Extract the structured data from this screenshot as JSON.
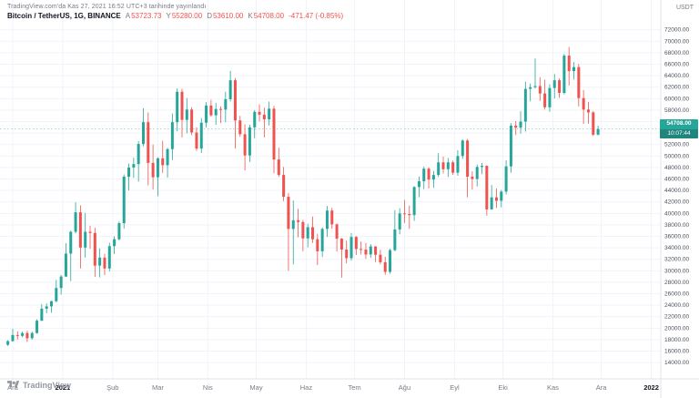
{
  "attribution": "TradingView.com'da Kas 27, 2021 16:52 UTC+3 tarihinde yayınlandı",
  "header": {
    "symbol": "Bitcoin / TetherUS, 1G, BINANCE",
    "ohlc": [
      {
        "label": "A",
        "value": "53723.73"
      },
      {
        "label": "Y",
        "value": "55280.00"
      },
      {
        "label": "D",
        "value": "53610.00"
      },
      {
        "label": "K",
        "value": "54708.00"
      }
    ],
    "change": "-471.47 (-0.85%)",
    "down_color": "#ef5350"
  },
  "price_scale_unit": "USDT",
  "last_price": {
    "price": 54708,
    "value": "54708.00",
    "countdown": "10:07:44",
    "color": "#26a69a"
  },
  "price_axis": {
    "tick_min": 14000,
    "tick_max": 72000,
    "tick_step": 2000
  },
  "time_axis": [
    {
      "label": "Ara",
      "day": 3
    },
    {
      "label": "2021",
      "day": 34,
      "strong": true
    },
    {
      "label": "Şub",
      "day": 65
    },
    {
      "label": "Mar",
      "day": 93
    },
    {
      "label": "Nis",
      "day": 124
    },
    {
      "label": "May",
      "day": 154
    },
    {
      "label": "Haz",
      "day": 185
    },
    {
      "label": "Tem",
      "day": 215
    },
    {
      "label": "Ağu",
      "day": 246
    },
    {
      "label": "Eyl",
      "day": 277
    },
    {
      "label": "Eki",
      "day": 307
    },
    {
      "label": "Kas",
      "day": 338
    },
    {
      "label": "Ara",
      "day": 368
    },
    {
      "label": "2022",
      "day": 399,
      "strong": true
    }
  ],
  "logo_text": "TradingView",
  "chart_data": {
    "type": "candlestick",
    "title": "Bitcoin / TetherUS, 1G, BINANCE",
    "symbol": "BTCUSDT",
    "interval": "1G",
    "start_date": "2020-11-28",
    "days_per_candle": 3,
    "ylim": [
      11800,
      73700
    ],
    "grid": true,
    "up_color": "#26a69a",
    "down_color": "#ef5350",
    "candles": [
      [
        17100,
        17900,
        16900,
        17750
      ],
      [
        17750,
        19900,
        17650,
        18800
      ],
      [
        18800,
        19450,
        18050,
        18650
      ],
      [
        18650,
        19400,
        18400,
        19150
      ],
      [
        19150,
        19550,
        17600,
        18250
      ],
      [
        18250,
        19400,
        18000,
        19150
      ],
      [
        19150,
        21550,
        19050,
        21300
      ],
      [
        21300,
        24200,
        21250,
        23400
      ],
      [
        23400,
        24300,
        22600,
        23800
      ],
      [
        23800,
        24800,
        22700,
        24700
      ],
      [
        24700,
        28400,
        24500,
        27000
      ],
      [
        27000,
        29300,
        25850,
        29000
      ],
      [
        29000,
        34800,
        28950,
        33000
      ],
      [
        33000,
        37000,
        28200,
        36800
      ],
      [
        36800,
        41950,
        36500,
        40200
      ],
      [
        40200,
        41400,
        30400,
        34050
      ],
      [
        34050,
        40100,
        32300,
        36800
      ],
      [
        36800,
        37850,
        33850,
        36600
      ],
      [
        36600,
        37500,
        28950,
        30900
      ],
      [
        30900,
        33900,
        28850,
        32300
      ],
      [
        32300,
        32950,
        29250,
        30400
      ],
      [
        30400,
        34900,
        29900,
        34300
      ],
      [
        34300,
        36000,
        32900,
        35500
      ],
      [
        35500,
        38600,
        35300,
        38300
      ],
      [
        38300,
        46800,
        37350,
        46400
      ],
      [
        46400,
        48700,
        44000,
        48000
      ],
      [
        48000,
        49700,
        46200,
        48600
      ],
      [
        48600,
        52600,
        45550,
        52100
      ],
      [
        52100,
        58350,
        51700,
        55900
      ],
      [
        55900,
        57600,
        44900,
        48800
      ],
      [
        48800,
        52000,
        44150,
        46300
      ],
      [
        46300,
        49800,
        43000,
        49600
      ],
      [
        49600,
        52650,
        47050,
        48400
      ],
      [
        48400,
        51450,
        46250,
        51200
      ],
      [
        51200,
        57400,
        49300,
        55900
      ],
      [
        55900,
        61800,
        54300,
        61200
      ],
      [
        61200,
        61700,
        53250,
        56300
      ],
      [
        56300,
        60100,
        53950,
        58100
      ],
      [
        58100,
        58500,
        53650,
        54100
      ],
      [
        54100,
        55000,
        50900,
        51300
      ],
      [
        51300,
        56600,
        50500,
        55800
      ],
      [
        55800,
        59400,
        55000,
        58800
      ],
      [
        58800,
        59800,
        56850,
        57100
      ],
      [
        57100,
        59250,
        55450,
        58200
      ],
      [
        58200,
        58650,
        55750,
        58100
      ],
      [
        58100,
        61200,
        55900,
        59900
      ],
      [
        59900,
        64850,
        59500,
        63200
      ],
      [
        63200,
        63600,
        51300,
        56200
      ],
      [
        56200,
        57000,
        53350,
        53800
      ],
      [
        53800,
        55500,
        47500,
        50100
      ],
      [
        50100,
        55450,
        48950,
        55000
      ],
      [
        55000,
        58000,
        53100,
        57700
      ],
      [
        57700,
        59000,
        56050,
        57200
      ],
      [
        57200,
        58400,
        53250,
        56400
      ],
      [
        56400,
        59500,
        55300,
        58250
      ],
      [
        58250,
        58750,
        47000,
        49400
      ],
      [
        49400,
        51450,
        46350,
        46700
      ],
      [
        46700,
        48100,
        42150,
        42900
      ],
      [
        42900,
        43550,
        30000,
        37300
      ],
      [
        37300,
        42250,
        31100,
        38800
      ],
      [
        38800,
        40800,
        35850,
        38500
      ],
      [
        38500,
        38850,
        33400,
        35650
      ],
      [
        35650,
        38200,
        34100,
        37600
      ],
      [
        37600,
        39450,
        34850,
        35500
      ],
      [
        35500,
        36450,
        31000,
        33400
      ],
      [
        33400,
        37550,
        32400,
        37300
      ],
      [
        37300,
        41300,
        35900,
        40500
      ],
      [
        40500,
        40950,
        37350,
        38100
      ],
      [
        38100,
        38250,
        33350,
        35600
      ],
      [
        35600,
        35700,
        28800,
        33700
      ],
      [
        33700,
        35250,
        31300,
        32200
      ],
      [
        32200,
        36600,
        31750,
        35900
      ],
      [
        35900,
        36050,
        32750,
        33800
      ],
      [
        33800,
        35100,
        32850,
        33700
      ],
      [
        33700,
        34850,
        32100,
        32850
      ],
      [
        32850,
        34650,
        32250,
        34250
      ],
      [
        34250,
        34300,
        31550,
        32800
      ],
      [
        32800,
        33650,
        31150,
        31500
      ],
      [
        31500,
        32450,
        29300,
        29800
      ],
      [
        29800,
        33850,
        29500,
        33600
      ],
      [
        33600,
        40550,
        33400,
        37200
      ],
      [
        37200,
        40900,
        36350,
        40000
      ],
      [
        40000,
        42350,
        38350,
        39900
      ],
      [
        39900,
        41350,
        37300,
        39700
      ],
      [
        39700,
        44750,
        38700,
        44600
      ],
      [
        44600,
        46450,
        42800,
        45600
      ],
      [
        45600,
        48150,
        44250,
        47800
      ],
      [
        47800,
        48050,
        44350,
        45900
      ],
      [
        45900,
        47400,
        44450,
        46700
      ],
      [
        46700,
        50500,
        46350,
        48900
      ],
      [
        48900,
        49900,
        46950,
        47700
      ],
      [
        47700,
        49650,
        46350,
        48900
      ],
      [
        48900,
        49200,
        46700,
        47100
      ],
      [
        47100,
        51000,
        46550,
        50000
      ],
      [
        50000,
        52900,
        49500,
        52700
      ],
      [
        52700,
        52950,
        42800,
        46400
      ],
      [
        46400,
        47350,
        44150,
        46000
      ],
      [
        46000,
        48500,
        44700,
        48100
      ],
      [
        48100,
        48800,
        46850,
        48300
      ],
      [
        48300,
        48350,
        39600,
        40700
      ],
      [
        40700,
        44950,
        40650,
        42800
      ],
      [
        42800,
        44350,
        40950,
        42200
      ],
      [
        42200,
        44100,
        41050,
        43800
      ],
      [
        43800,
        49250,
        43300,
        48200
      ],
      [
        48200,
        55750,
        47100,
        55300
      ],
      [
        55300,
        56100,
        53650,
        54950
      ],
      [
        54950,
        57800,
        53900,
        56000
      ],
      [
        56000,
        62950,
        54250,
        61700
      ],
      [
        61700,
        62650,
        59550,
        62000
      ],
      [
        62000,
        67000,
        61750,
        62200
      ],
      [
        62200,
        63750,
        59600,
        60900
      ],
      [
        60900,
        63300,
        58100,
        58500
      ],
      [
        58500,
        62500,
        57700,
        61850
      ],
      [
        61850,
        64300,
        60050,
        63200
      ],
      [
        63200,
        63550,
        60150,
        61000
      ],
      [
        61000,
        67800,
        60750,
        67500
      ],
      [
        67500,
        69000,
        62300,
        64800
      ],
      [
        64800,
        66350,
        63350,
        65500
      ],
      [
        65500,
        66050,
        58650,
        60100
      ],
      [
        60100,
        61500,
        55600,
        58100
      ],
      [
        58100,
        59450,
        55650,
        57600
      ],
      [
        57600,
        57850,
        53500,
        53723.73
      ],
      [
        53723.73,
        55280,
        53610,
        54708
      ]
    ]
  }
}
